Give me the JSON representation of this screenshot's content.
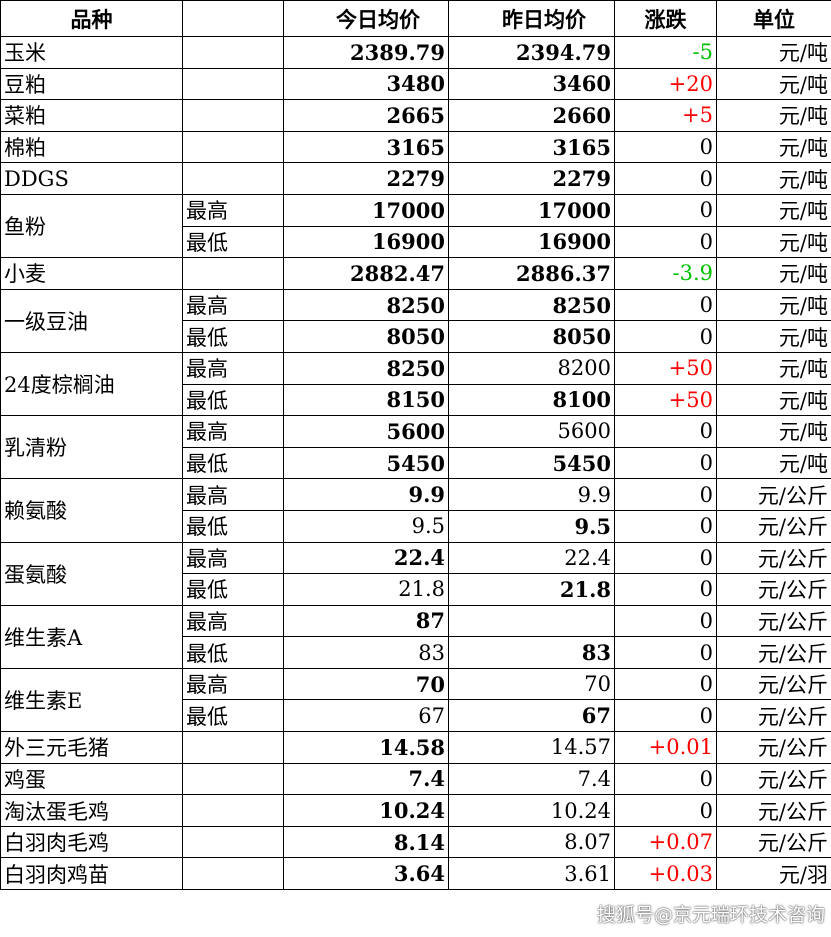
{
  "headers": [
    "品种",
    "",
    "今日均价",
    "昨日均价",
    "涨跌",
    "单位"
  ],
  "colors": {
    "up": "#ff0000",
    "down": "#00c000"
  },
  "groups": [
    {
      "name": "玉米",
      "rows": [
        {
          "sub": "",
          "today": "2389.79",
          "yest": "2394.79",
          "change": "-5",
          "unit": "元/吨",
          "tb": true,
          "yb": true
        }
      ]
    },
    {
      "name": "豆粕",
      "rows": [
        {
          "sub": "",
          "today": "3480",
          "yest": "3460",
          "change": "+20",
          "unit": "元/吨",
          "tb": true,
          "yb": true
        }
      ]
    },
    {
      "name": "菜粕",
      "rows": [
        {
          "sub": "",
          "today": "2665",
          "yest": "2660",
          "change": "+5",
          "unit": "元/吨",
          "tb": true,
          "yb": true
        }
      ]
    },
    {
      "name": "棉粕",
      "rows": [
        {
          "sub": "",
          "today": "3165",
          "yest": "3165",
          "change": "0",
          "unit": "元/吨",
          "tb": true,
          "yb": true
        }
      ]
    },
    {
      "name": "DDGS",
      "rows": [
        {
          "sub": "",
          "today": "2279",
          "yest": "2279",
          "change": "0",
          "unit": "元/吨",
          "tb": true,
          "yb": true
        }
      ]
    },
    {
      "name": "鱼粉",
      "rows": [
        {
          "sub": "最高",
          "today": "17000",
          "yest": "17000",
          "change": "0",
          "unit": "元/吨",
          "tb": true,
          "yb": true
        },
        {
          "sub": "最低",
          "today": "16900",
          "yest": "16900",
          "change": "0",
          "unit": "元/吨",
          "tb": true,
          "yb": true
        }
      ]
    },
    {
      "name": "小麦",
      "rows": [
        {
          "sub": "",
          "today": "2882.47",
          "yest": "2886.37",
          "change": "-3.9",
          "unit": "元/吨",
          "tb": true,
          "yb": true
        }
      ]
    },
    {
      "name": "一级豆油",
      "rows": [
        {
          "sub": "最高",
          "today": "8250",
          "yest": "8250",
          "change": "0",
          "unit": "元/吨",
          "tb": true,
          "yb": true
        },
        {
          "sub": "最低",
          "today": "8050",
          "yest": "8050",
          "change": "0",
          "unit": "元/吨",
          "tb": true,
          "yb": true
        }
      ]
    },
    {
      "name": "24度棕榈油",
      "rows": [
        {
          "sub": "最高",
          "today": "8250",
          "yest": "8200",
          "change": "+50",
          "unit": "元/吨",
          "tb": true,
          "yb": false
        },
        {
          "sub": "最低",
          "today": "8150",
          "yest": "8100",
          "change": "+50",
          "unit": "元/吨",
          "tb": true,
          "yb": true
        }
      ]
    },
    {
      "name": "乳清粉",
      "rows": [
        {
          "sub": "最高",
          "today": "5600",
          "yest": "5600",
          "change": "0",
          "unit": "元/吨",
          "tb": true,
          "yb": false
        },
        {
          "sub": "最低",
          "today": "5450",
          "yest": "5450",
          "change": "0",
          "unit": "元/吨",
          "tb": true,
          "yb": true
        }
      ]
    },
    {
      "name": "赖氨酸",
      "rows": [
        {
          "sub": "最高",
          "today": "9.9",
          "yest": "9.9",
          "change": "0",
          "unit": "元/公斤",
          "tb": true,
          "yb": false
        },
        {
          "sub": "最低",
          "today": "9.5",
          "yest": "9.5",
          "change": "0",
          "unit": "元/公斤",
          "tb": false,
          "yb": true
        }
      ]
    },
    {
      "name": "蛋氨酸",
      "rows": [
        {
          "sub": "最高",
          "today": "22.4",
          "yest": "22.4",
          "change": "0",
          "unit": "元/公斤",
          "tb": true,
          "yb": false
        },
        {
          "sub": "最低",
          "today": "21.8",
          "yest": "21.8",
          "change": "0",
          "unit": "元/公斤",
          "tb": false,
          "yb": true
        }
      ]
    },
    {
      "name": "维生素A",
      "rows": [
        {
          "sub": "最高",
          "today": "87",
          "yest": "",
          "change": "0",
          "unit": "元/公斤",
          "tb": true,
          "yb": false
        },
        {
          "sub": "最低",
          "today": "83",
          "yest": "83",
          "change": "0",
          "unit": "元/公斤",
          "tb": false,
          "yb": true
        }
      ]
    },
    {
      "name": "维生素E",
      "rows": [
        {
          "sub": "最高",
          "today": "70",
          "yest": "70",
          "change": "0",
          "unit": "元/公斤",
          "tb": true,
          "yb": false
        },
        {
          "sub": "最低",
          "today": "67",
          "yest": "67",
          "change": "0",
          "unit": "元/公斤",
          "tb": false,
          "yb": true
        }
      ]
    },
    {
      "name": "外三元毛猪",
      "rows": [
        {
          "sub": "",
          "today": "14.58",
          "yest": "14.57",
          "change": "+0.01",
          "unit": "元/公斤",
          "tb": true,
          "yb": false
        }
      ]
    },
    {
      "name": "鸡蛋",
      "rows": [
        {
          "sub": "",
          "today": "7.4",
          "yest": "7.4",
          "change": "0",
          "unit": "元/公斤",
          "tb": true,
          "yb": false
        }
      ]
    },
    {
      "name": "淘汰蛋毛鸡",
      "rows": [
        {
          "sub": "",
          "today": "10.24",
          "yest": "10.24",
          "change": "0",
          "unit": "元/公斤",
          "tb": true,
          "yb": false
        }
      ]
    },
    {
      "name": "白羽肉毛鸡",
      "rows": [
        {
          "sub": "",
          "today": "8.14",
          "yest": "8.07",
          "change": "+0.07",
          "unit": "元/公斤",
          "tb": true,
          "yb": false
        }
      ]
    },
    {
      "name": "白羽肉鸡苗",
      "rows": [
        {
          "sub": "",
          "today": "3.64",
          "yest": "3.61",
          "change": "+0.03",
          "unit": "元/羽",
          "tb": true,
          "yb": false
        }
      ]
    }
  ],
  "watermark": "搜狐号@京元瑞环技术咨询"
}
